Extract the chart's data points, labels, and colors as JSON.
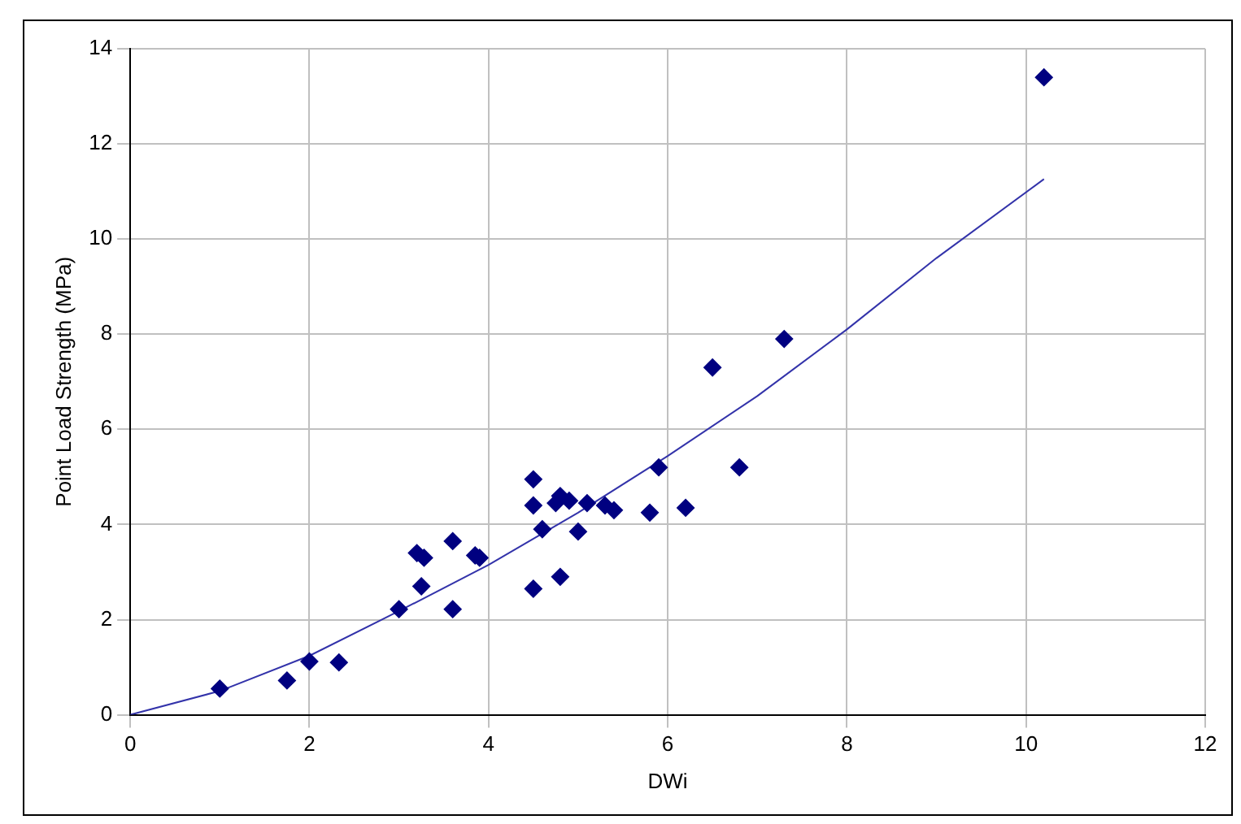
{
  "chart_data": {
    "type": "scatter",
    "xlabel": "DWi",
    "ylabel": "Point Load Strength (MPa)",
    "xlim": [
      0,
      12
    ],
    "xticks": [
      0,
      2,
      4,
      6,
      8,
      10,
      12
    ],
    "ylim": [
      0,
      14
    ],
    "yticks": [
      0,
      2,
      4,
      6,
      8,
      10,
      12,
      14
    ],
    "grid": true,
    "series": [
      {
        "marker": "diamond",
        "color": "#000080",
        "x": [
          1.0,
          1.75,
          2.0,
          2.33,
          3.0,
          3.2,
          3.25,
          3.28,
          3.6,
          3.6,
          3.85,
          3.9,
          4.5,
          4.5,
          4.5,
          4.6,
          4.75,
          4.8,
          4.8,
          4.9,
          5.0,
          5.1,
          5.3,
          5.4,
          5.8,
          5.9,
          6.2,
          6.5,
          6.8,
          7.3,
          10.2
        ],
        "values": [
          0.55,
          0.72,
          1.12,
          1.1,
          2.22,
          3.4,
          2.7,
          3.3,
          3.65,
          2.22,
          3.35,
          3.3,
          4.95,
          4.4,
          2.65,
          3.9,
          4.45,
          4.6,
          2.9,
          4.5,
          3.85,
          4.45,
          4.4,
          4.3,
          4.25,
          5.2,
          4.35,
          7.3,
          5.2,
          7.9,
          13.4
        ]
      },
      {
        "type": "line",
        "color": "#3333aa",
        "x": [
          0,
          1,
          2,
          3,
          4,
          5,
          6,
          7,
          8,
          9,
          10.2
        ],
        "values": [
          0,
          0.5,
          1.24,
          2.18,
          3.15,
          4.25,
          5.44,
          6.7,
          8.1,
          9.6,
          11.26
        ]
      }
    ]
  }
}
